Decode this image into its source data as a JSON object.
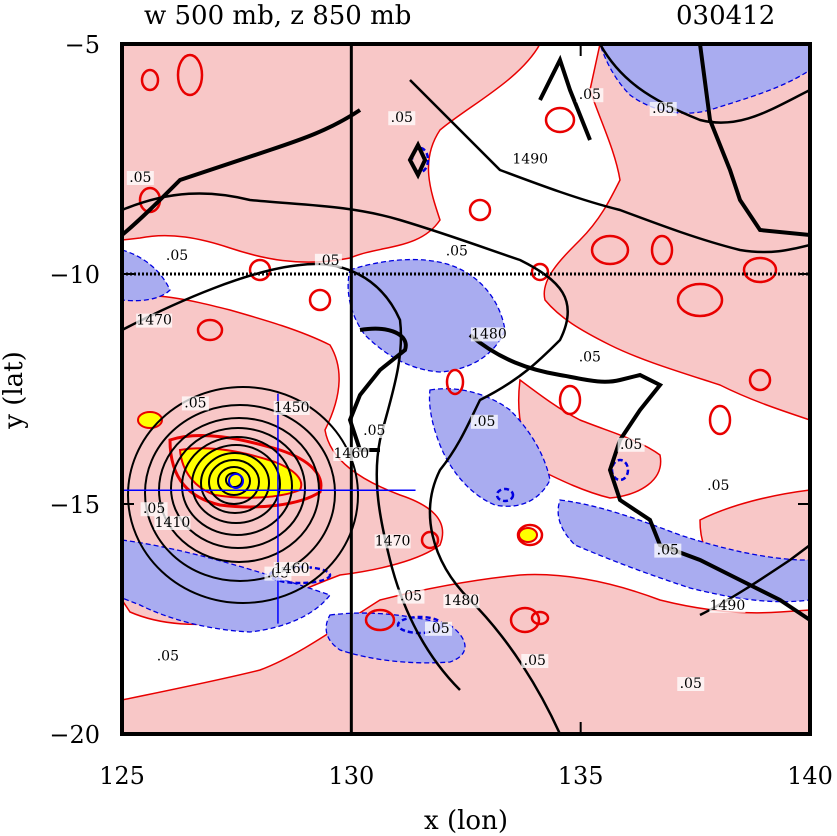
{
  "chart_data": {
    "type": "contour",
    "title_left": "w 500 mb, z 850 mb",
    "title_right": "030412",
    "xlabel": "x (lon)",
    "ylabel": "y (lat)",
    "xlim": [
      125,
      140
    ],
    "ylim": [
      -20,
      -5
    ],
    "x_ticks": [
      125,
      130,
      135,
      140
    ],
    "x_tick_labels": [
      "125",
      "130",
      "135",
      "140"
    ],
    "y_ticks": [
      -5,
      -10,
      -15,
      -20
    ],
    "y_tick_labels": [
      "−5",
      "−10",
      "−15",
      "−20"
    ],
    "reference_lines": {
      "lon": 130,
      "lat": -10
    },
    "cross_center": {
      "lon": 128.4,
      "lat": -14.7,
      "lon_range": [
        125,
        131.4
      ],
      "lat_range": [
        -17.6,
        -12.6
      ]
    },
    "low_center": {
      "lon": 127.6,
      "lat": -14.5,
      "marker": "@"
    },
    "w_contour_labels": [
      {
        "lon": 126.2,
        "lat": -9.7,
        "text": ".05"
      },
      {
        "lon": 129.5,
        "lat": -9.8,
        "text": ".05"
      },
      {
        "lon": 131.1,
        "lat": -6.7,
        "text": ".05"
      },
      {
        "lon": 132.3,
        "lat": -9.6,
        "text": ".05"
      },
      {
        "lon": 135.2,
        "lat": -6.2,
        "text": ".05"
      },
      {
        "lon": 136.8,
        "lat": -6.5,
        "text": ".05"
      },
      {
        "lon": 126.6,
        "lat": -12.9,
        "text": ".05"
      },
      {
        "lon": 128.4,
        "lat": -16.6,
        "text": ".05"
      },
      {
        "lon": 130.5,
        "lat": -13.5,
        "text": ".05"
      },
      {
        "lon": 132.9,
        "lat": -13.3,
        "text": ".05"
      },
      {
        "lon": 136.1,
        "lat": -13.8,
        "text": ".05"
      },
      {
        "lon": 135.2,
        "lat": -11.9,
        "text": ".05"
      },
      {
        "lon": 138.0,
        "lat": -14.7,
        "text": ".05"
      },
      {
        "lon": 136.9,
        "lat": -16.1,
        "text": ".05"
      },
      {
        "lon": 131.3,
        "lat": -17.1,
        "text": ".05"
      },
      {
        "lon": 131.9,
        "lat": -17.8,
        "text": ".05"
      },
      {
        "lon": 126.0,
        "lat": -18.4,
        "text": ".05"
      },
      {
        "lon": 134.0,
        "lat": -18.5,
        "text": ".05"
      },
      {
        "lon": 137.4,
        "lat": -19.0,
        "text": ".05"
      },
      {
        "lon": 125.7,
        "lat": -15.2,
        "text": ".05"
      },
      {
        "lon": 125.4,
        "lat": -8.0,
        "text": ".05"
      }
    ],
    "z_contour_labels": [
      {
        "lon": 125.7,
        "lat": -11.1,
        "text": "1470"
      },
      {
        "lon": 133.9,
        "lat": -7.6,
        "text": "1490"
      },
      {
        "lon": 133.0,
        "lat": -11.4,
        "text": "1480"
      },
      {
        "lon": 128.7,
        "lat": -13.0,
        "text": "1450"
      },
      {
        "lon": 126.1,
        "lat": -15.5,
        "text": "1410"
      },
      {
        "lon": 128.7,
        "lat": -16.5,
        "text": "1460"
      },
      {
        "lon": 130.9,
        "lat": -15.9,
        "text": "1470"
      },
      {
        "lon": 132.4,
        "lat": -17.2,
        "text": "1480"
      },
      {
        "lon": 138.2,
        "lat": -17.3,
        "text": "1490"
      },
      {
        "lon": 130.0,
        "lat": -14.0,
        "text": "1460"
      }
    ],
    "colors": {
      "positive_fill": "#f8c7c7",
      "negative_fill": "#a9acf0",
      "positive_line": "#e80000",
      "negative_line": "#0000e0",
      "strong_positive": "#ffff00",
      "height_contour": "#000000",
      "cross": "#0000ff"
    }
  }
}
